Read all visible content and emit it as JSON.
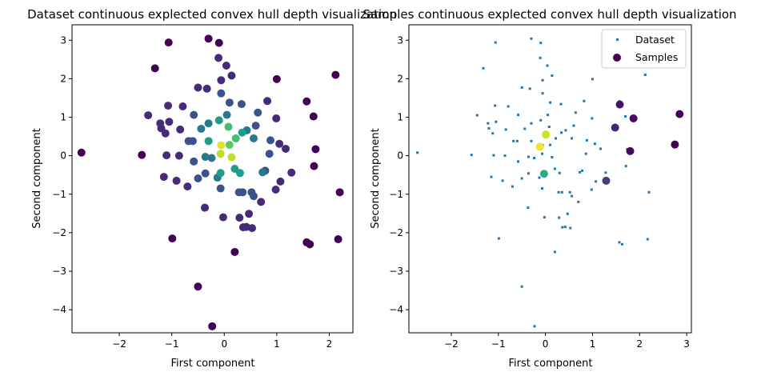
{
  "chart_data": [
    {
      "type": "scatter",
      "title": "Dataset continuous explected convex hull depth visualization",
      "xlabel": "First component",
      "ylabel": "Second component",
      "xlim": [
        -2.9,
        2.45
      ],
      "ylim": [
        -4.6,
        3.4
      ],
      "xticks": [
        -2,
        -1,
        0,
        1,
        2
      ],
      "yticks": [
        -4,
        -3,
        -2,
        -1,
        0,
        1,
        2,
        3
      ],
      "colormap": "viridis",
      "grid": false,
      "points": [
        {
          "x": -2.72,
          "y": 0.08,
          "depth": 0.0
        },
        {
          "x": -1.57,
          "y": 0.02,
          "depth": 0.0
        },
        {
          "x": -1.32,
          "y": 2.27,
          "depth": 0.0
        },
        {
          "x": -1.06,
          "y": 2.94,
          "depth": 0.0
        },
        {
          "x": -0.99,
          "y": -2.15,
          "depth": 0.0
        },
        {
          "x": -0.3,
          "y": 3.04,
          "depth": 0.0
        },
        {
          "x": -0.1,
          "y": 2.93,
          "depth": 0.0
        },
        {
          "x": -0.5,
          "y": -3.4,
          "depth": 0.0
        },
        {
          "x": -0.23,
          "y": -4.43,
          "depth": 0.0
        },
        {
          "x": 0.2,
          "y": -2.5,
          "depth": 0.0
        },
        {
          "x": 1.0,
          "y": 1.99,
          "depth": 0.0
        },
        {
          "x": 1.57,
          "y": 1.41,
          "depth": 0.0
        },
        {
          "x": 1.7,
          "y": 1.02,
          "depth": 0.0
        },
        {
          "x": 2.12,
          "y": 2.1,
          "depth": 0.0
        },
        {
          "x": 1.74,
          "y": 0.17,
          "depth": 0.0
        },
        {
          "x": 1.71,
          "y": -0.27,
          "depth": 0.0
        },
        {
          "x": 2.2,
          "y": -0.95,
          "depth": 0.0
        },
        {
          "x": 2.17,
          "y": -2.17,
          "depth": 0.0
        },
        {
          "x": 1.57,
          "y": -2.25,
          "depth": 0.0
        },
        {
          "x": 1.63,
          "y": -2.3,
          "depth": 0.0
        },
        {
          "x": -1.45,
          "y": 1.05,
          "depth": 0.12
        },
        {
          "x": -1.22,
          "y": 0.84,
          "depth": 0.12
        },
        {
          "x": -1.2,
          "y": 0.71,
          "depth": 0.12
        },
        {
          "x": -1.12,
          "y": 0.58,
          "depth": 0.12
        },
        {
          "x": -1.07,
          "y": 1.3,
          "depth": 0.12
        },
        {
          "x": -1.05,
          "y": 0.88,
          "depth": 0.12
        },
        {
          "x": -0.84,
          "y": 0.68,
          "depth": 0.12
        },
        {
          "x": -0.79,
          "y": 1.28,
          "depth": 0.12
        },
        {
          "x": -1.1,
          "y": 0.01,
          "depth": 0.12
        },
        {
          "x": -0.86,
          "y": 0.0,
          "depth": 0.12
        },
        {
          "x": -1.15,
          "y": -0.55,
          "depth": 0.12
        },
        {
          "x": -0.91,
          "y": -0.65,
          "depth": 0.12
        },
        {
          "x": -0.7,
          "y": -0.8,
          "depth": 0.12
        },
        {
          "x": -0.5,
          "y": 1.77,
          "depth": 0.12
        },
        {
          "x": -0.33,
          "y": 1.74,
          "depth": 0.12
        },
        {
          "x": -0.11,
          "y": 2.54,
          "depth": 0.12
        },
        {
          "x": 0.04,
          "y": 2.34,
          "depth": 0.12
        },
        {
          "x": 0.14,
          "y": 2.08,
          "depth": 0.12
        },
        {
          "x": -0.06,
          "y": 1.96,
          "depth": 0.12
        },
        {
          "x": -0.37,
          "y": -1.35,
          "depth": 0.12
        },
        {
          "x": -0.02,
          "y": -1.6,
          "depth": 0.12
        },
        {
          "x": 0.29,
          "y": -1.61,
          "depth": 0.12
        },
        {
          "x": 0.42,
          "y": -1.85,
          "depth": 0.12
        },
        {
          "x": 0.47,
          "y": -1.51,
          "depth": 0.12
        },
        {
          "x": 0.53,
          "y": -1.88,
          "depth": 0.12
        },
        {
          "x": 0.36,
          "y": -1.86,
          "depth": 0.12
        },
        {
          "x": 0.7,
          "y": -1.2,
          "depth": 0.12
        },
        {
          "x": 0.98,
          "y": -0.88,
          "depth": 0.12
        },
        {
          "x": 1.28,
          "y": -0.44,
          "depth": 0.12
        },
        {
          "x": 1.05,
          "y": 0.31,
          "depth": 0.12
        },
        {
          "x": 1.17,
          "y": 0.18,
          "depth": 0.12
        },
        {
          "x": 0.99,
          "y": 0.97,
          "depth": 0.12
        },
        {
          "x": 0.82,
          "y": 1.42,
          "depth": 0.12
        },
        {
          "x": 1.07,
          "y": -0.67,
          "depth": 0.12
        },
        {
          "x": -0.58,
          "y": 1.06,
          "depth": 0.25
        },
        {
          "x": -0.68,
          "y": 0.38,
          "depth": 0.25
        },
        {
          "x": -0.6,
          "y": 0.38,
          "depth": 0.25
        },
        {
          "x": -0.58,
          "y": -0.15,
          "depth": 0.25
        },
        {
          "x": -0.5,
          "y": -0.59,
          "depth": 0.25
        },
        {
          "x": -0.36,
          "y": -0.46,
          "depth": 0.25
        },
        {
          "x": -0.06,
          "y": 1.62,
          "depth": 0.25
        },
        {
          "x": 0.1,
          "y": 1.38,
          "depth": 0.25
        },
        {
          "x": 0.33,
          "y": 1.34,
          "depth": 0.25
        },
        {
          "x": 0.64,
          "y": 1.12,
          "depth": 0.25
        },
        {
          "x": 0.6,
          "y": 0.78,
          "depth": 0.25
        },
        {
          "x": 0.88,
          "y": 0.4,
          "depth": 0.25
        },
        {
          "x": 0.86,
          "y": 0.05,
          "depth": 0.25
        },
        {
          "x": 0.78,
          "y": -0.39,
          "depth": 0.25
        },
        {
          "x": 0.52,
          "y": -0.95,
          "depth": 0.25
        },
        {
          "x": 0.56,
          "y": -1.05,
          "depth": 0.25
        },
        {
          "x": 0.28,
          "y": -0.95,
          "depth": 0.25
        },
        {
          "x": -0.07,
          "y": -0.85,
          "depth": 0.25
        },
        {
          "x": 0.35,
          "y": -0.95,
          "depth": 0.25
        },
        {
          "x": -0.3,
          "y": 0.84,
          "depth": 0.4
        },
        {
          "x": -0.44,
          "y": 0.7,
          "depth": 0.4
        },
        {
          "x": -0.36,
          "y": -0.03,
          "depth": 0.4
        },
        {
          "x": -0.24,
          "y": -0.06,
          "depth": 0.4
        },
        {
          "x": -0.13,
          "y": -0.57,
          "depth": 0.4
        },
        {
          "x": 0.05,
          "y": 1.06,
          "depth": 0.4
        },
        {
          "x": 0.43,
          "y": 0.66,
          "depth": 0.4
        },
        {
          "x": 0.73,
          "y": -0.43,
          "depth": 0.4
        },
        {
          "x": 0.56,
          "y": 0.45,
          "depth": 0.4
        },
        {
          "x": -0.3,
          "y": 0.38,
          "depth": 0.55
        },
        {
          "x": -0.1,
          "y": 0.92,
          "depth": 0.55
        },
        {
          "x": -0.07,
          "y": -0.45,
          "depth": 0.55
        },
        {
          "x": 0.2,
          "y": -0.34,
          "depth": 0.55
        },
        {
          "x": 0.3,
          "y": -0.45,
          "depth": 0.55
        },
        {
          "x": 0.34,
          "y": 0.6,
          "depth": 0.55
        },
        {
          "x": 0.08,
          "y": 0.75,
          "depth": 0.7
        },
        {
          "x": 0.22,
          "y": 0.45,
          "depth": 0.7
        },
        {
          "x": 0.1,
          "y": 0.28,
          "depth": 0.75
        },
        {
          "x": -0.06,
          "y": 0.27,
          "depth": 0.95
        },
        {
          "x": -0.07,
          "y": 0.05,
          "depth": 0.9
        },
        {
          "x": 0.14,
          "y": -0.04,
          "depth": 0.9
        }
      ]
    },
    {
      "type": "scatter",
      "title": "Samples continuous explected convex hull depth visualization",
      "xlabel": "First component",
      "ylabel": "Second component",
      "xlim": [
        -2.9,
        3.1
      ],
      "ylim": [
        -4.6,
        3.4
      ],
      "xticks": [
        -2,
        -1,
        0,
        1,
        2,
        3
      ],
      "yticks": [
        -4,
        -3,
        -2,
        -1,
        0,
        1,
        2,
        3
      ],
      "legend": {
        "position": "top-right",
        "entries": [
          "Dataset",
          "Samples"
        ]
      },
      "colormap": "viridis",
      "dataset_color": "#1f77b4",
      "samples": [
        {
          "x": 1.58,
          "y": 1.33,
          "depth": 0.05
        },
        {
          "x": 1.48,
          "y": 0.73,
          "depth": 0.1
        },
        {
          "x": 1.87,
          "y": 0.97,
          "depth": 0.03
        },
        {
          "x": 1.8,
          "y": 0.12,
          "depth": 0.03
        },
        {
          "x": 2.85,
          "y": 1.08,
          "depth": 0.0
        },
        {
          "x": 2.75,
          "y": 0.29,
          "depth": 0.0
        },
        {
          "x": 1.29,
          "y": -0.65,
          "depth": 0.18
        },
        {
          "x": 0.01,
          "y": 0.55,
          "depth": 0.92
        },
        {
          "x": -0.12,
          "y": 0.23,
          "depth": 0.98
        },
        {
          "x": -0.03,
          "y": -0.47,
          "depth": 0.62
        }
      ]
    }
  ]
}
